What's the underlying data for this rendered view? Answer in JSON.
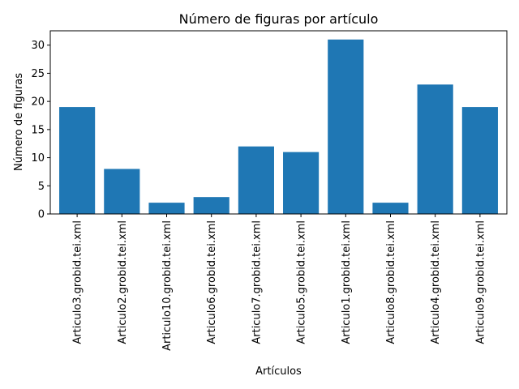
{
  "chart_data": {
    "type": "bar",
    "title": "Número de figuras por artículo",
    "xlabel": "Artículos",
    "ylabel": "Número de figuras",
    "categories": [
      "Articulo3.grobid.tei.xml",
      "Articulo2.grobid.tei.xml",
      "Articulo10.grobid.tei.xml",
      "Articulo6.grobid.tei.xml",
      "Articulo7.grobid.tei.xml",
      "Articulo5.grobid.tei.xml",
      "Articulo1.grobid.tei.xml",
      "Articulo8.grobid.tei.xml",
      "Articulo4.grobid.tei.xml",
      "Articulo9.grobid.tei.xml"
    ],
    "values": [
      19,
      8,
      2,
      3,
      12,
      11,
      31,
      2,
      23,
      19
    ],
    "ylim": [
      0,
      32.55
    ],
    "yticks": [
      0,
      5,
      10,
      15,
      20,
      25,
      30
    ],
    "bar_color": "#1f77b4",
    "grid": false,
    "legend": "none"
  }
}
